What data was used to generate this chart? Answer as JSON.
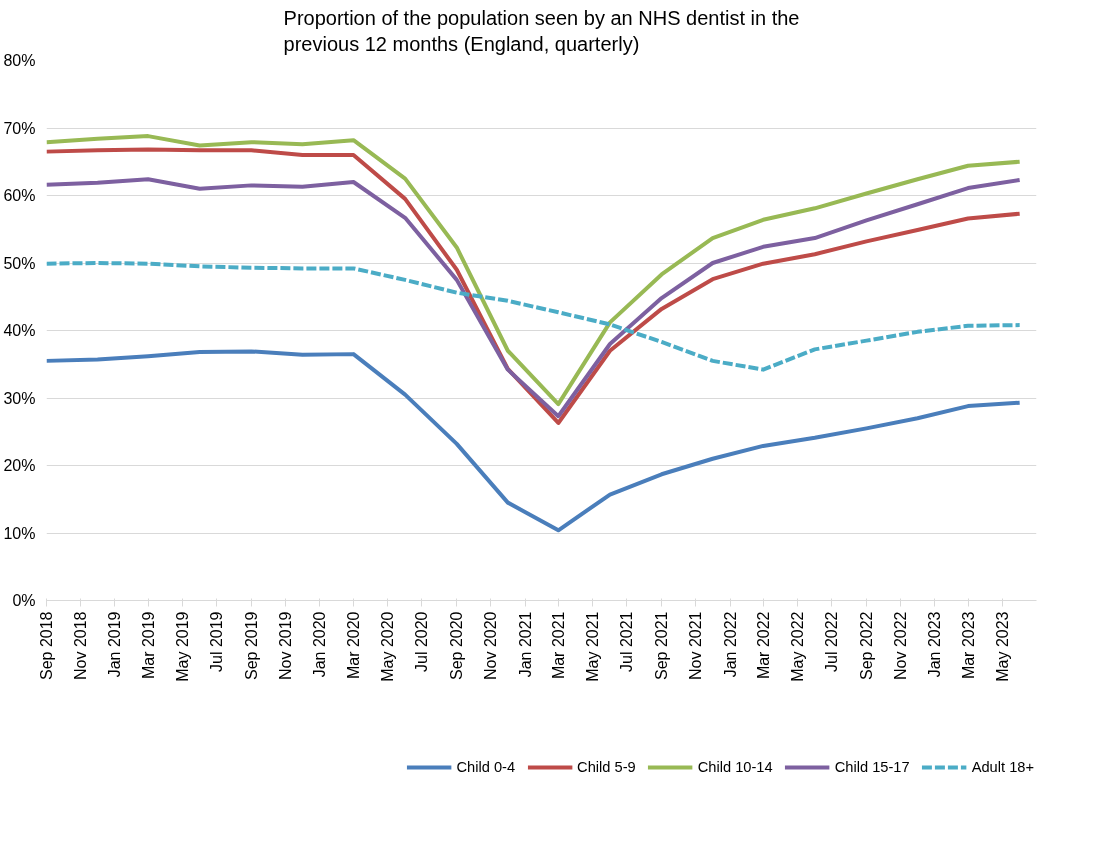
{
  "chart_data": {
    "type": "line",
    "title": "Proportion of the population seen by an NHS dentist in the previous 12 months (England, quarterly)",
    "x": [
      "2018-09",
      "2018-12",
      "2019-03",
      "2019-06",
      "2019-09",
      "2019-12",
      "2020-03",
      "2020-06",
      "2020-09",
      "2020-12",
      "2021-03",
      "2021-06",
      "2021-09",
      "2021-12",
      "2022-03",
      "2022-06",
      "2022-09",
      "2022-12",
      "2023-03",
      "2023-06"
    ],
    "series": [
      {
        "name": "Child 0-4",
        "color": "#4a7ebb",
        "line_style": "solid",
        "values": [
          35.5,
          35.7,
          36.2,
          36.8,
          36.9,
          36.4,
          36.5,
          30.5,
          23.2,
          14.5,
          10.4,
          15.7,
          18.7,
          21.0,
          22.9,
          24.1,
          25.5,
          27.0,
          28.8,
          29.3
        ]
      },
      {
        "name": "Child 5-9",
        "color": "#be4b48",
        "line_style": "solid",
        "values": [
          66.5,
          66.7,
          66.8,
          66.7,
          66.7,
          66.0,
          66.0,
          59.5,
          49.0,
          34.3,
          26.3,
          37.0,
          43.2,
          47.6,
          49.9,
          51.3,
          53.2,
          54.9,
          56.6,
          57.3
        ]
      },
      {
        "name": "Child 10-14",
        "color": "#98b954",
        "line_style": "solid",
        "values": [
          67.9,
          68.4,
          68.8,
          67.4,
          67.9,
          67.6,
          68.2,
          62.5,
          52.3,
          37.0,
          29.1,
          41.2,
          48.3,
          53.7,
          56.4,
          58.1,
          60.3,
          62.4,
          64.4,
          65.0
        ]
      },
      {
        "name": "Child 15-17",
        "color": "#7d60a0",
        "line_style": "solid",
        "values": [
          61.6,
          61.9,
          62.4,
          61.0,
          61.5,
          61.3,
          62.0,
          56.7,
          47.5,
          34.2,
          27.3,
          38.0,
          44.8,
          50.0,
          52.4,
          53.7,
          56.3,
          58.7,
          61.1,
          62.3
        ]
      },
      {
        "name": "Adult 18+",
        "color": "#4bacc6",
        "line_style": "dashed",
        "values": [
          49.9,
          50.0,
          49.9,
          49.5,
          49.3,
          49.2,
          49.2,
          47.5,
          45.6,
          44.4,
          42.7,
          40.9,
          38.3,
          35.5,
          34.2,
          37.2,
          38.5,
          39.8,
          40.7,
          40.8
        ]
      }
    ],
    "xlim": [
      "2018-09",
      "2023-07"
    ],
    "xticks": [
      {
        "value": "2018-09",
        "label": "Sep 2018"
      },
      {
        "value": "2018-11",
        "label": "Nov 2018"
      },
      {
        "value": "2019-01",
        "label": "Jan 2019"
      },
      {
        "value": "2019-03",
        "label": "Mar 2019"
      },
      {
        "value": "2019-05",
        "label": "May 2019"
      },
      {
        "value": "2019-07",
        "label": "Jul 2019"
      },
      {
        "value": "2019-09",
        "label": "Sep 2019"
      },
      {
        "value": "2019-11",
        "label": "Nov 2019"
      },
      {
        "value": "2020-01",
        "label": "Jan 2020"
      },
      {
        "value": "2020-03",
        "label": "Mar 2020"
      },
      {
        "value": "2020-05",
        "label": "May 2020"
      },
      {
        "value": "2020-07",
        "label": "Jul 2020"
      },
      {
        "value": "2020-09",
        "label": "Sep 2020"
      },
      {
        "value": "2020-11",
        "label": "Nov 2020"
      },
      {
        "value": "2021-01",
        "label": "Jan 2021"
      },
      {
        "value": "2021-03",
        "label": "Mar 2021"
      },
      {
        "value": "2021-05",
        "label": "May 2021"
      },
      {
        "value": "2021-07",
        "label": "Jul 2021"
      },
      {
        "value": "2021-09",
        "label": "Sep 2021"
      },
      {
        "value": "2021-11",
        "label": "Nov 2021"
      },
      {
        "value": "2022-01",
        "label": "Jan 2022"
      },
      {
        "value": "2022-03",
        "label": "Mar 2022"
      },
      {
        "value": "2022-05",
        "label": "May 2022"
      },
      {
        "value": "2022-07",
        "label": "Jul 2022"
      },
      {
        "value": "2022-09",
        "label": "Sep 2022"
      },
      {
        "value": "2022-11",
        "label": "Nov 2022"
      },
      {
        "value": "2023-01",
        "label": "Jan 2023"
      },
      {
        "value": "2023-03",
        "label": "Mar 2023"
      },
      {
        "value": "2023-05",
        "label": "May 2023"
      }
    ],
    "ylim": [
      0,
      80
    ],
    "yticks": [
      {
        "value": 0,
        "label": "0%"
      },
      {
        "value": 10,
        "label": "10%"
      },
      {
        "value": 20,
        "label": "20%"
      },
      {
        "value": 30,
        "label": "30%"
      },
      {
        "value": 40,
        "label": "40%"
      },
      {
        "value": 50,
        "label": "50%"
      },
      {
        "value": 60,
        "label": "60%"
      },
      {
        "value": 70,
        "label": "70%"
      },
      {
        "value": 80,
        "label": "80%"
      }
    ],
    "grid": "y",
    "legend": "bottom",
    "marker": "none"
  }
}
